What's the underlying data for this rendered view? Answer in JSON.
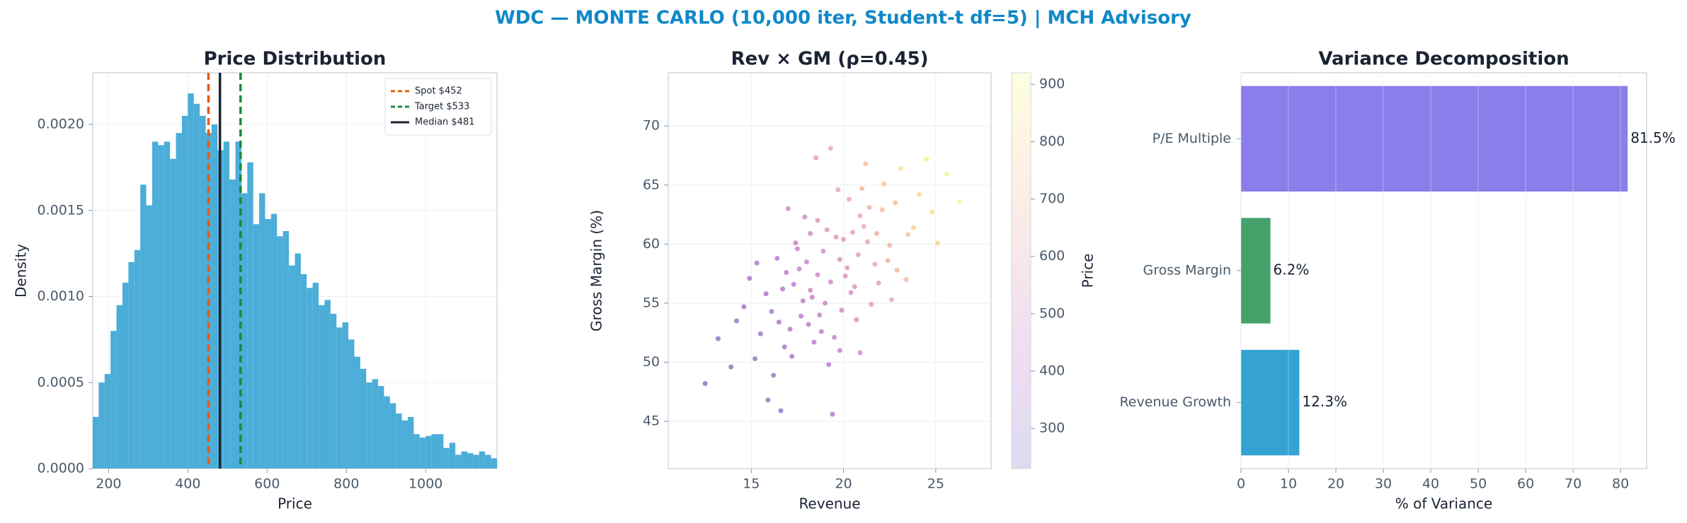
{
  "title": "WDC — MONTE CARLO (10,000 iter, Student-t df=5) | MCH Advisory",
  "chart_data": [
    {
      "type": "histogram",
      "title": "Price Distribution",
      "x_label": "Price",
      "y_label": "Density",
      "color": "#4badd8",
      "grid": true,
      "legend": "upper right",
      "bins": [
        160,
        175,
        190,
        205,
        220,
        235,
        250,
        265,
        280,
        295,
        310,
        325,
        340,
        355,
        370,
        385,
        400,
        415,
        430,
        445,
        460,
        475,
        490,
        505,
        520,
        535,
        550,
        565,
        580,
        595,
        610,
        625,
        640,
        655,
        670,
        685,
        700,
        715,
        730,
        745,
        760,
        775,
        790,
        805,
        820,
        835,
        850,
        865,
        880,
        895,
        910,
        925,
        940,
        955,
        970,
        985,
        1000,
        1015,
        1030,
        1045,
        1060,
        1075,
        1090,
        1105,
        1120,
        1135,
        1150,
        1165,
        1180
      ],
      "values": [
        0.0003,
        0.0005,
        0.00055,
        0.0008,
        0.00095,
        0.00108,
        0.0012,
        0.00127,
        0.00165,
        0.00153,
        0.0019,
        0.00188,
        0.0019,
        0.0018,
        0.00195,
        0.00205,
        0.00218,
        0.00212,
        0.00205,
        0.00195,
        0.002,
        0.00185,
        0.0019,
        0.00168,
        0.0019,
        0.0016,
        0.00178,
        0.00142,
        0.0016,
        0.00145,
        0.00148,
        0.00135,
        0.00138,
        0.00118,
        0.00125,
        0.00113,
        0.00105,
        0.00108,
        0.00095,
        0.00098,
        0.0009,
        0.00082,
        0.00085,
        0.00075,
        0.00065,
        0.00058,
        0.0005,
        0.00052,
        0.00048,
        0.00042,
        0.00038,
        0.00032,
        0.00028,
        0.0003,
        0.0002,
        0.00018,
        0.00019,
        0.0002,
        0.0002,
        0.00012,
        0.00015,
        8e-05,
        0.0001,
        9e-05,
        8e-05,
        0.0001,
        8e-05,
        6e-05
      ],
      "lines": [
        {
          "name": "Spot $452",
          "value": 452,
          "color": "#e8590c",
          "style": "dashed"
        },
        {
          "name": "Target $533",
          "value": 533,
          "color": "#1a8a3c",
          "style": "dashed"
        },
        {
          "name": "Median $481",
          "value": 481,
          "color": "#1a2333",
          "style": "solid"
        }
      ],
      "xlim": [
        160,
        1180
      ],
      "xticks": [
        200,
        400,
        600,
        800,
        1000
      ],
      "ylim": [
        0,
        0.0023
      ],
      "yticks": [
        {
          "value": 0,
          "label": "0.0000"
        },
        {
          "value": 0.0005,
          "label": "0.0005"
        },
        {
          "value": 0.001,
          "label": "0.0010"
        },
        {
          "value": 0.0015,
          "label": "0.0015"
        },
        {
          "value": 0.002,
          "label": "0.0020"
        }
      ]
    },
    {
      "type": "scatter",
      "title": "Rev × GM (ρ=0.45)",
      "x_label": "Revenue",
      "y_label": "Gross Margin (%)",
      "colorbar_label": "Price",
      "colormap": [
        "#0d0887",
        "#7e03a8",
        "#cc4778",
        "#f89540",
        "#f0f921"
      ],
      "grid": true,
      "x": [
        18.2,
        16.5,
        19.8,
        21.3,
        17.1,
        20.4,
        15.2,
        22.8,
        19.1,
        18.7,
        16.9,
        20.9,
        23.5,
        17.8,
        19.5,
        21.7,
        14.6,
        18.9,
        20.1,
        22.2,
        16.2,
        19.3,
        24.1,
        17.4,
        20.7,
        18.4,
        21.1,
        15.8,
        19.9,
        22.5,
        17.6,
        20.3,
        13.9,
        18.1,
        21.9,
        16.7,
        19.6,
        23.1,
        18.6,
        20.8,
        15.5,
        17.9,
        21.5,
        19.2,
        24.8,
        16.4,
        18.3,
        20.5,
        22.9,
        17.2,
        19.7,
        14.9,
        21.2,
        18.8,
        25.6,
        16.1,
        20.2,
        19.4,
        22.1,
        17.5,
        23.8,
        18.5,
        15.9,
        20.6,
        21.4,
        17.7,
        19.0,
        13.2,
        22.6,
        18.0,
        26.3,
        16.8,
        20.0,
        21.8,
        17.3,
        19.8,
        24.5,
        15.3,
        18.6,
        22.4,
        12.5,
        20.9,
        17.0,
        19.3,
        23.4,
        16.6,
        21.0,
        18.2,
        25.1,
        14.2
      ],
      "y": [
        56.1,
        53.4,
        58.7,
        60.2,
        52.8,
        55.9,
        50.3,
        63.5,
        61.2,
        54.0,
        57.6,
        62.4,
        60.8,
        55.2,
        52.1,
        58.3,
        54.7,
        59.4,
        57.3,
        65.1,
        48.9,
        56.8,
        64.2,
        60.1,
        53.6,
        51.7,
        61.5,
        55.8,
        54.4,
        59.9,
        57.9,
        63.8,
        49.6,
        53.2,
        56.7,
        56.2,
        60.6,
        66.4,
        57.4,
        59.1,
        52.4,
        62.3,
        54.9,
        49.8,
        62.7,
        58.8,
        55.5,
        61.0,
        57.8,
        50.5,
        64.6,
        57.1,
        66.8,
        52.6,
        65.9,
        54.3,
        58.0,
        45.6,
        62.9,
        59.6,
        61.4,
        67.3,
        46.8,
        56.4,
        63.1,
        53.9,
        55.0,
        52.0,
        55.3,
        58.5,
        63.6,
        51.3,
        60.4,
        60.9,
        56.6,
        51.0,
        67.2,
        58.4,
        62.0,
        58.6,
        48.2,
        50.8,
        63.0,
        68.1,
        57.0,
        45.9,
        64.7,
        60.9,
        60.1,
        53.5
      ],
      "color_values": [
        470,
        360,
        540,
        620,
        380,
        520,
        300,
        720,
        560,
        450,
        420,
        640,
        730,
        430,
        460,
        610,
        330,
        510,
        530,
        760,
        290,
        490,
        810,
        450,
        520,
        410,
        650,
        360,
        490,
        680,
        450,
        640,
        260,
        420,
        600,
        390,
        550,
        820,
        480,
        590,
        320,
        500,
        570,
        420,
        840,
        400,
        460,
        600,
        690,
        350,
        620,
        350,
        720,
        440,
        890,
        350,
        550,
        370,
        700,
        460,
        770,
        580,
        290,
        560,
        680,
        410,
        480,
        270,
        630,
        480,
        900,
        350,
        570,
        650,
        420,
        450,
        880,
        370,
        540,
        660,
        240,
        500,
        480,
        640,
        700,
        280,
        700,
        510,
        800,
        300
      ],
      "xlim": [
        10.5,
        28
      ],
      "xticks": [
        15,
        20,
        25
      ],
      "ylim": [
        41,
        74.5
      ],
      "yticks": [
        45,
        50,
        55,
        60,
        65,
        70
      ],
      "colorlim": [
        230,
        920
      ],
      "colorticks": [
        300,
        400,
        500,
        600,
        700,
        800,
        900
      ]
    },
    {
      "type": "barh",
      "title": "Variance Decomposition",
      "x_label": "% of Variance",
      "grid": true,
      "categories": [
        "Revenue Growth",
        "Gross Margin",
        "P/E Multiple"
      ],
      "values": [
        12.3,
        6.2,
        81.5
      ],
      "value_labels": [
        "12.3%",
        "6.2%",
        "81.5%"
      ],
      "colors": [
        "#34a3d4",
        "#46a06a",
        "#8a7fea"
      ],
      "xlim": [
        0,
        85.5
      ],
      "xticks": [
        0,
        10,
        20,
        30,
        40,
        50,
        60,
        70,
        80
      ]
    }
  ]
}
